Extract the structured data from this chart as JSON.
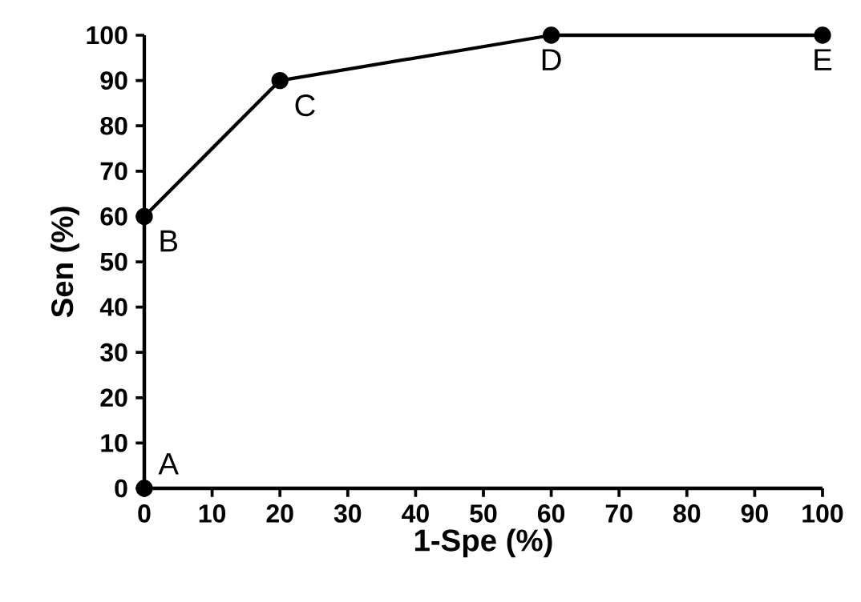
{
  "chart_data": {
    "type": "line",
    "xlabel": "1-Spe (%)",
    "ylabel": "Sen (%)",
    "x": [
      0,
      0,
      20,
      60,
      100
    ],
    "series": [
      {
        "color": "#000000",
        "values": [
          0,
          60,
          90,
          100,
          100
        ]
      }
    ],
    "xlim": [
      0,
      100
    ],
    "ylim": [
      0,
      100
    ],
    "xticks": [
      0,
      10,
      20,
      30,
      40,
      50,
      60,
      70,
      80,
      90,
      100
    ],
    "yticks": [
      0,
      10,
      20,
      30,
      40,
      50,
      60,
      70,
      80,
      90,
      100
    ],
    "marker": "circle",
    "line_style": "solid",
    "annotations": [
      {
        "text": "A",
        "x": 0,
        "y": 0
      },
      {
        "text": "B",
        "x": 0,
        "y": 60
      },
      {
        "text": "C",
        "x": 20,
        "y": 90
      },
      {
        "text": "D",
        "x": 60,
        "y": 100
      },
      {
        "text": "E",
        "x": 100,
        "y": 100
      }
    ]
  }
}
